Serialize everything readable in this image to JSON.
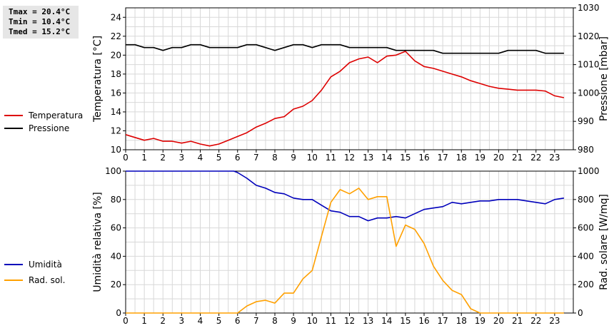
{
  "stats": {
    "tmax": "Tmax = 20.4°C",
    "tmin": "Tmin = 10.4°C",
    "tmed": "Tmed = 15.2°C"
  },
  "legend_top": [
    {
      "label": "Temperatura",
      "color": "#dd0000"
    },
    {
      "label": "Pressione",
      "color": "#000000"
    }
  ],
  "legend_bottom": [
    {
      "label": "Umidità",
      "color": "#0000bb"
    },
    {
      "label": "Rad. sol.",
      "color": "#ffa000"
    }
  ],
  "chart_data": [
    {
      "type": "line",
      "title": "",
      "xlabel": "",
      "x_ticks": [
        0,
        1,
        2,
        3,
        4,
        5,
        6,
        7,
        8,
        9,
        10,
        11,
        12,
        13,
        14,
        15,
        16,
        17,
        18,
        19,
        20,
        21,
        22,
        23
      ],
      "xlim": [
        0,
        24
      ],
      "ylabel": "Temperatura [°C]",
      "ylim": [
        10,
        25
      ],
      "y_ticks": [
        10,
        12,
        14,
        16,
        18,
        20,
        22,
        24
      ],
      "y2label": "Pressione [mbar]",
      "y2lim": [
        980,
        1030
      ],
      "y2_ticks": [
        980,
        990,
        1000,
        1010,
        1020,
        1030
      ],
      "grid": true,
      "series": [
        {
          "name": "Temperatura",
          "axis": "left",
          "color": "#dd0000",
          "x": [
            0,
            0.5,
            1,
            1.5,
            2,
            2.5,
            3,
            3.5,
            4,
            4.5,
            5,
            5.5,
            6,
            6.5,
            7,
            7.5,
            8,
            8.5,
            9,
            9.5,
            10,
            10.5,
            11,
            11.5,
            12,
            12.5,
            13,
            13.5,
            14,
            14.5,
            15,
            15.5,
            16,
            16.5,
            17,
            17.5,
            18,
            18.5,
            19,
            19.5,
            20,
            20.5,
            21,
            21.5,
            22,
            22.5,
            23,
            23.5
          ],
          "values": [
            11.6,
            11.3,
            11.0,
            11.2,
            10.9,
            10.9,
            10.7,
            10.9,
            10.6,
            10.4,
            10.6,
            11.0,
            11.4,
            11.8,
            12.4,
            12.8,
            13.3,
            13.5,
            14.3,
            14.6,
            15.2,
            16.3,
            17.7,
            18.3,
            19.2,
            19.6,
            19.8,
            19.2,
            19.9,
            20.0,
            20.4,
            19.4,
            18.8,
            18.6,
            18.3,
            18.0,
            17.7,
            17.3,
            17.0,
            16.7,
            16.5,
            16.4,
            16.3,
            16.3,
            16.3,
            16.2,
            15.7,
            15.5
          ]
        },
        {
          "name": "Pressione",
          "axis": "right",
          "color": "#000000",
          "x": [
            0,
            0.5,
            1,
            1.5,
            2,
            2.5,
            3,
            3.5,
            4,
            4.5,
            5,
            5.5,
            6,
            6.5,
            7,
            7.5,
            8,
            8.5,
            9,
            9.5,
            10,
            10.5,
            11,
            11.5,
            12,
            12.5,
            13,
            13.5,
            14,
            14.5,
            15,
            15.5,
            16,
            16.5,
            17,
            17.5,
            18,
            18.5,
            19,
            19.5,
            20,
            20.5,
            21,
            21.5,
            22,
            22.5,
            23,
            23.5
          ],
          "values": [
            1017,
            1017,
            1016,
            1016,
            1015,
            1016,
            1016,
            1017,
            1017,
            1016,
            1016,
            1016,
            1016,
            1017,
            1017,
            1016,
            1015,
            1016,
            1017,
            1017,
            1016,
            1017,
            1017,
            1017,
            1016,
            1016,
            1016,
            1016,
            1016,
            1015,
            1015,
            1015,
            1015,
            1015,
            1014,
            1014,
            1014,
            1014,
            1014,
            1014,
            1014,
            1015,
            1015,
            1015,
            1015,
            1014,
            1014,
            1014
          ]
        }
      ]
    },
    {
      "type": "line",
      "title": "",
      "xlabel": "",
      "x_ticks": [
        0,
        1,
        2,
        3,
        4,
        5,
        6,
        7,
        8,
        9,
        10,
        11,
        12,
        13,
        14,
        15,
        16,
        17,
        18,
        19,
        20,
        21,
        22,
        23
      ],
      "xlim": [
        0,
        24
      ],
      "ylabel": "Umidità relativa [%]",
      "ylim": [
        0,
        100
      ],
      "y_ticks": [
        0,
        20,
        40,
        60,
        80,
        100
      ],
      "y2label": "Rad. solare [W/mq]",
      "y2lim": [
        0,
        1000
      ],
      "y2_ticks": [
        0,
        200,
        400,
        600,
        800,
        1000
      ],
      "grid": true,
      "series": [
        {
          "name": "Umidità",
          "axis": "left",
          "color": "#0000bb",
          "x": [
            0,
            0.5,
            1,
            1.5,
            2,
            2.5,
            3,
            3.5,
            4,
            4.5,
            5,
            5.5,
            5.8,
            6,
            6.5,
            7,
            7.5,
            8,
            8.5,
            9,
            9.5,
            10,
            10.5,
            11,
            11.5,
            12,
            12.5,
            13,
            13.5,
            14,
            14.5,
            15,
            15.5,
            16,
            16.5,
            17,
            17.5,
            18,
            18.5,
            19,
            19.5,
            20,
            20.5,
            21,
            21.5,
            22,
            22.5,
            23,
            23.5
          ],
          "values": [
            100,
            100,
            100,
            100,
            100,
            100,
            100,
            100,
            100,
            100,
            100,
            100,
            100,
            99,
            95,
            90,
            88,
            85,
            84,
            81,
            80,
            80,
            76,
            72,
            71,
            68,
            68,
            65,
            67,
            67,
            68,
            67,
            70,
            73,
            74,
            75,
            78,
            77,
            78,
            79,
            79,
            80,
            80,
            80,
            79,
            78,
            77,
            80,
            81
          ]
        },
        {
          "name": "Rad. sol.",
          "axis": "right",
          "color": "#ffa000",
          "x": [
            0,
            0.5,
            1,
            1.5,
            2,
            2.5,
            3,
            3.5,
            4,
            4.5,
            5,
            5.5,
            6,
            6.5,
            7,
            7.5,
            8,
            8.5,
            9,
            9.5,
            10,
            10.5,
            11,
            11.5,
            12,
            12.5,
            13,
            13.5,
            14,
            14.5,
            15,
            15.5,
            16,
            16.5,
            17,
            17.5,
            18,
            18.5,
            19,
            19.5,
            20,
            20.5,
            21,
            21.5,
            22,
            22.5,
            23,
            23.5
          ],
          "values": [
            0,
            0,
            0,
            0,
            0,
            0,
            0,
            0,
            0,
            0,
            0,
            0,
            0,
            50,
            80,
            90,
            70,
            140,
            140,
            240,
            300,
            540,
            780,
            870,
            840,
            880,
            800,
            820,
            820,
            470,
            620,
            590,
            490,
            330,
            230,
            160,
            130,
            30,
            0,
            0,
            0,
            0,
            0,
            0,
            0,
            0,
            0,
            0
          ]
        }
      ]
    }
  ]
}
